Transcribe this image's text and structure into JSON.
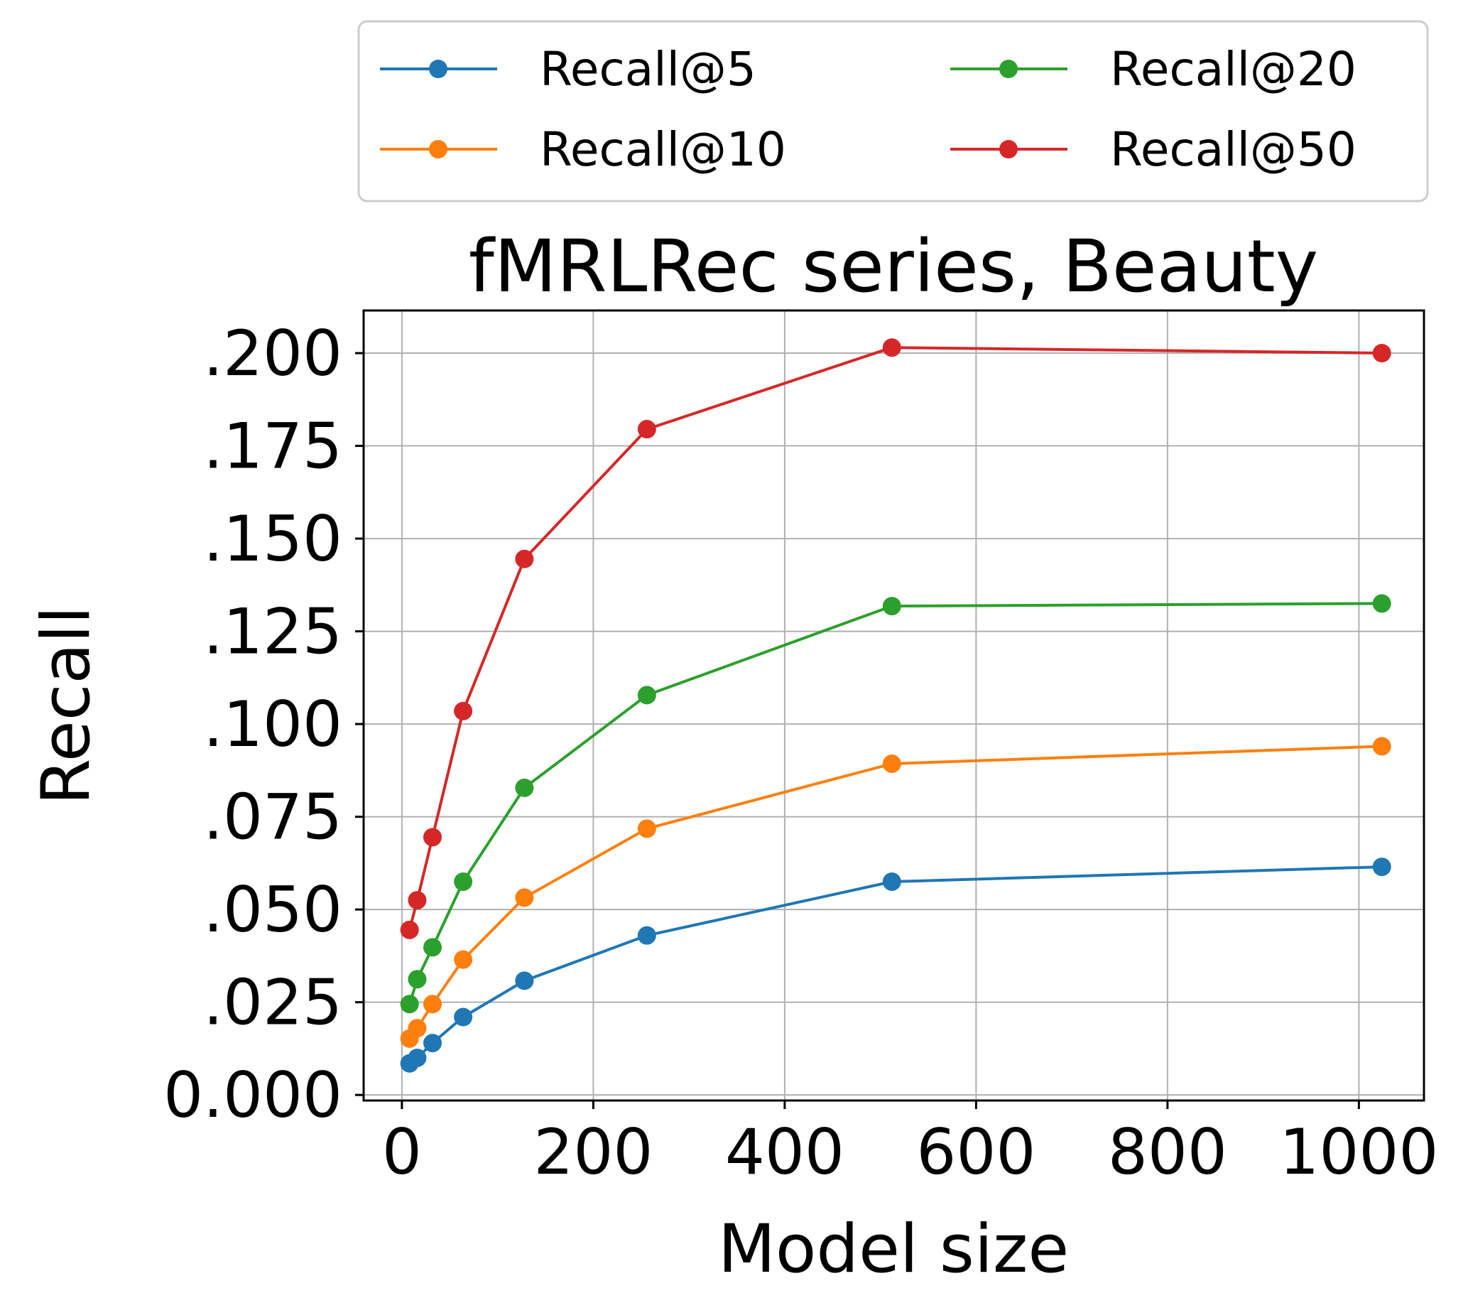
{
  "chart_data": {
    "type": "line",
    "title": "fMRLRec series, Beauty",
    "xlabel": "Model size",
    "ylabel": "Recall",
    "xlim": [
      -40,
      1068
    ],
    "ylim": [
      -0.0015,
      0.2115
    ],
    "xticks": [
      0,
      200,
      400,
      600,
      800,
      1000
    ],
    "xtick_labels": [
      "0",
      "200",
      "400",
      "600",
      "800",
      "1000"
    ],
    "yticks": [
      0,
      0.025,
      0.05,
      0.075,
      0.1,
      0.125,
      0.15,
      0.175,
      0.2
    ],
    "ytick_labels": [
      "0.000",
      ".025",
      ".050",
      ".075",
      ".100",
      ".125",
      ".150",
      ".175",
      ".200"
    ],
    "grid": true,
    "legend_position": "top, outside plot area, two columns",
    "x": [
      8,
      16,
      32,
      64,
      128,
      256,
      512,
      1024
    ],
    "series": [
      {
        "name": "Recall@5",
        "color": "#1f77b4",
        "values": [
          0.0085,
          0.01,
          0.014,
          0.021,
          0.0308,
          0.043,
          0.0575,
          0.0615
        ]
      },
      {
        "name": "Recall@10",
        "color": "#ff7f0e",
        "values": [
          0.0152,
          0.018,
          0.0245,
          0.0365,
          0.0532,
          0.0718,
          0.0893,
          0.094
        ]
      },
      {
        "name": "Recall@20",
        "color": "#2ca02c",
        "values": [
          0.0245,
          0.0312,
          0.0398,
          0.0575,
          0.0828,
          0.1078,
          0.1318,
          0.1325
        ]
      },
      {
        "name": "Recall@50",
        "color": "#d62728",
        "values": [
          0.0445,
          0.0525,
          0.0695,
          0.1035,
          0.1445,
          0.1795,
          0.2015,
          0.2
        ]
      }
    ]
  }
}
